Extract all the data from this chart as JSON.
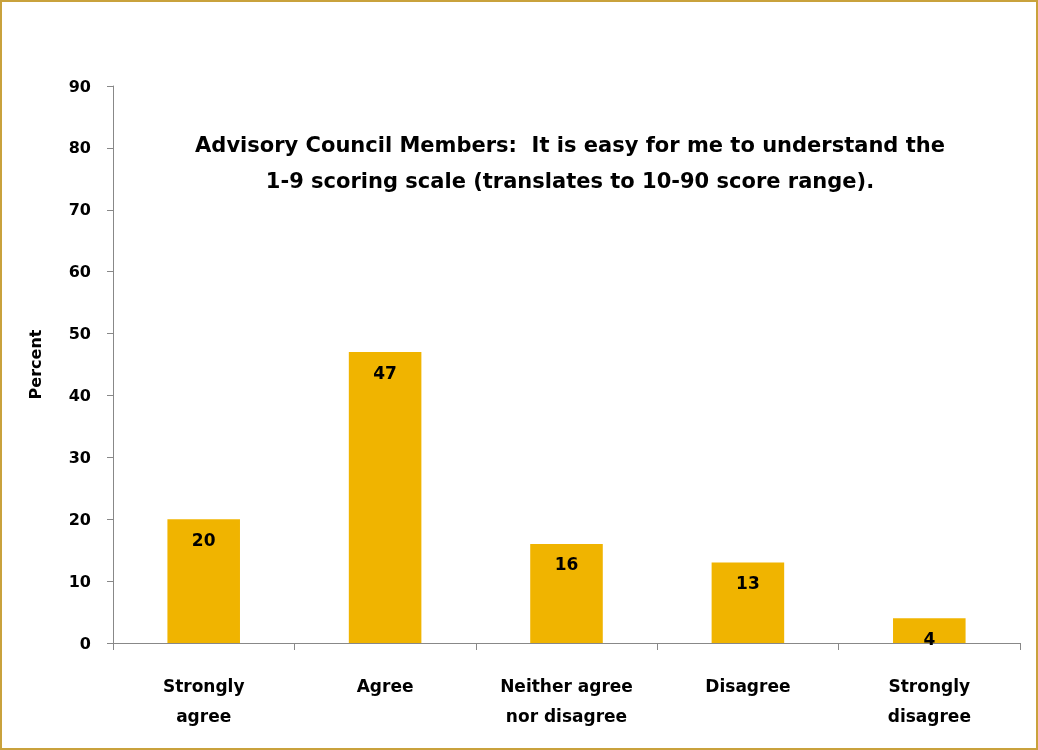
{
  "chart_data": {
    "type": "bar",
    "title": "Advisory Council Members:  It is easy for me to understand the\n1-9 scoring scale (translates to 10-90 score range).",
    "ylabel": "Percent",
    "categories": [
      "Strongly\nagree",
      "Agree",
      "Neither agree\nnor disagree",
      "Disagree",
      "Strongly\ndisagree"
    ],
    "values": [
      20,
      47,
      16,
      13,
      4
    ],
    "color": "#f0b400",
    "ylim": [
      0,
      90
    ],
    "yticks": [
      0,
      10,
      20,
      30,
      40,
      50,
      60,
      70,
      80,
      90
    ],
    "grid": false,
    "data_labels": true
  }
}
